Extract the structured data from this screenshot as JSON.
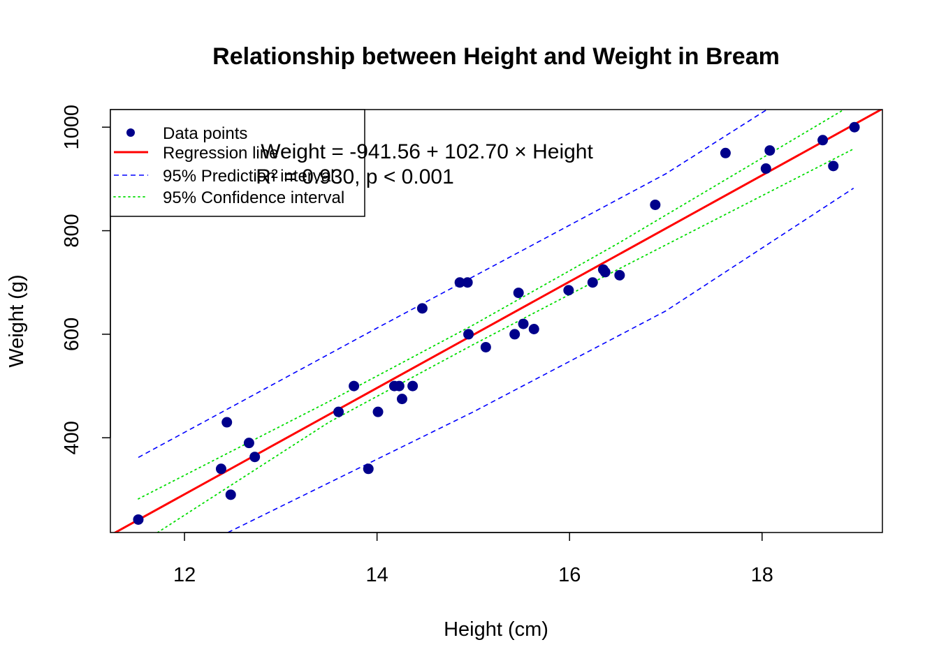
{
  "chart_data": {
    "type": "scatter",
    "title": "Relationship between Height and Weight in Bream",
    "xlabel": "Height (cm)",
    "ylabel": "Weight (g)",
    "xlim": [
      11.23,
      19.25
    ],
    "ylim": [
      217,
      1034
    ],
    "x_ticks": [
      12,
      14,
      16,
      18
    ],
    "y_ticks": [
      400,
      600,
      800,
      1000
    ],
    "grid": false,
    "legend_position": "top-left",
    "colors": {
      "points": "#00008B",
      "regression": "#FF0000",
      "prediction": "#0000FF",
      "confidence": "#00DD00"
    },
    "legend": [
      {
        "label": "Data points",
        "kind": "point"
      },
      {
        "label": "Regression line",
        "kind": "regression"
      },
      {
        "label": "95% Prediction interval",
        "kind": "prediction"
      },
      {
        "label": "95% Confidence interval",
        "kind": "confidence"
      }
    ],
    "annotations": {
      "equation": "Weight = -941.56 + 102.70 × Height",
      "r_squared": "R² = 0.930, p < 0.001"
    },
    "regression": {
      "intercept": -941.56,
      "slope": 102.7,
      "x_range": [
        11.23,
        19.25
      ]
    },
    "prediction_interval": {
      "upper": [
        [
          11.52,
          362
        ],
        [
          14.0,
          612
        ],
        [
          17.0,
          910
        ],
        [
          18.05,
          1034
        ]
      ],
      "lower": [
        [
          12.45,
          217
        ],
        [
          15.0,
          450
        ],
        [
          17.0,
          645
        ],
        [
          18.95,
          882
        ]
      ]
    },
    "confidence_interval": {
      "upper": [
        [
          11.52,
          282
        ],
        [
          13.5,
          470
        ],
        [
          15.0,
          618
        ],
        [
          16.5,
          775
        ],
        [
          18.95,
          1045
        ]
      ],
      "lower": [
        [
          11.72,
          217
        ],
        [
          13.5,
          430
        ],
        [
          15.0,
          580
        ],
        [
          16.5,
          725
        ],
        [
          18.95,
          958
        ]
      ]
    },
    "points": [
      {
        "x": 11.52,
        "y": 242
      },
      {
        "x": 12.38,
        "y": 340
      },
      {
        "x": 12.44,
        "y": 430
      },
      {
        "x": 12.48,
        "y": 290
      },
      {
        "x": 12.67,
        "y": 390
      },
      {
        "x": 12.73,
        "y": 363
      },
      {
        "x": 13.6,
        "y": 450
      },
      {
        "x": 13.76,
        "y": 500
      },
      {
        "x": 13.91,
        "y": 340
      },
      {
        "x": 14.01,
        "y": 450
      },
      {
        "x": 14.18,
        "y": 500
      },
      {
        "x": 14.23,
        "y": 500
      },
      {
        "x": 14.26,
        "y": 475
      },
      {
        "x": 14.37,
        "y": 500
      },
      {
        "x": 14.47,
        "y": 650
      },
      {
        "x": 14.86,
        "y": 700
      },
      {
        "x": 14.94,
        "y": 700
      },
      {
        "x": 14.95,
        "y": 600
      },
      {
        "x": 15.13,
        "y": 575
      },
      {
        "x": 15.43,
        "y": 600
      },
      {
        "x": 15.47,
        "y": 680
      },
      {
        "x": 15.52,
        "y": 620
      },
      {
        "x": 15.63,
        "y": 610
      },
      {
        "x": 15.99,
        "y": 685
      },
      {
        "x": 16.24,
        "y": 700
      },
      {
        "x": 16.35,
        "y": 725
      },
      {
        "x": 16.37,
        "y": 720
      },
      {
        "x": 16.52,
        "y": 714
      },
      {
        "x": 16.89,
        "y": 850
      },
      {
        "x": 17.62,
        "y": 950
      },
      {
        "x": 18.04,
        "y": 920
      },
      {
        "x": 18.08,
        "y": 955
      },
      {
        "x": 18.63,
        "y": 975
      },
      {
        "x": 18.74,
        "y": 925
      },
      {
        "x": 18.96,
        "y": 1000
      }
    ]
  }
}
